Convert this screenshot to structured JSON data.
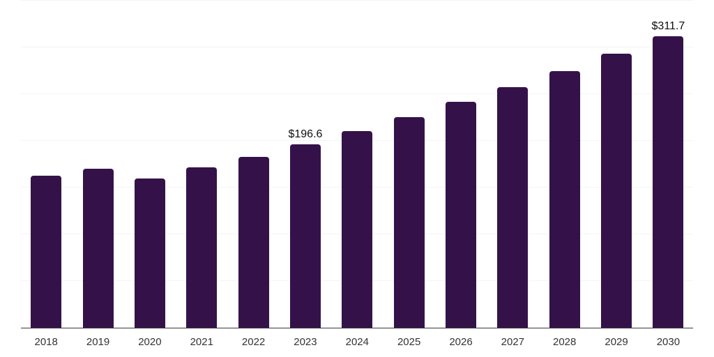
{
  "chart_data": {
    "type": "bar",
    "categories": [
      "2018",
      "2019",
      "2020",
      "2021",
      "2022",
      "2023",
      "2024",
      "2025",
      "2026",
      "2027",
      "2028",
      "2029",
      "2030"
    ],
    "values": [
      162.7,
      170.4,
      159.7,
      171.5,
      182.5,
      196.6,
      210.5,
      225.4,
      242.0,
      257.8,
      274.9,
      293.2,
      311.7
    ],
    "annotations": [
      {
        "index": 5,
        "text": "$196.6"
      },
      {
        "index": 12,
        "text": "$311.7"
      }
    ],
    "title": "",
    "xlabel": "",
    "ylabel": "",
    "ylim": [
      0,
      350
    ],
    "gridline_step": 50,
    "grid": true,
    "legend": "none",
    "colors": {
      "bar": "#341249",
      "gridline": "#f4f4f6",
      "axis_line": "#38383d",
      "tick_label": "#333333",
      "data_label": "#0d0d0d"
    }
  }
}
